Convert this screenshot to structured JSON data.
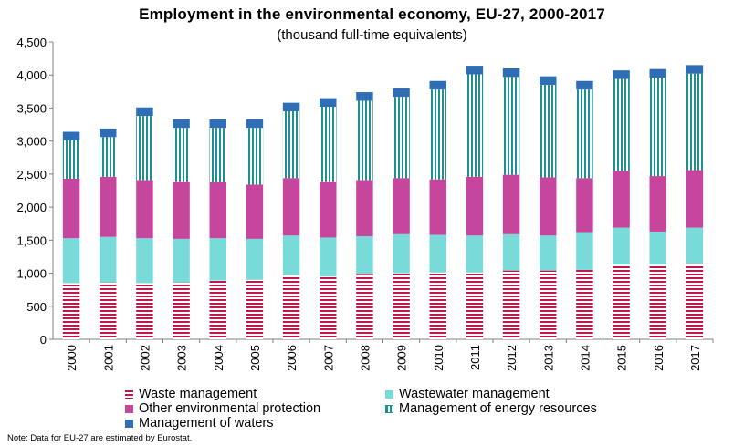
{
  "chart_data": {
    "type": "bar",
    "stacked": true,
    "title": "Employment in the environmental economy, EU-27, 2000-2017",
    "subtitle": "(thousand full-time equivalents)",
    "xlabel": "",
    "ylabel": "",
    "ylim": [
      0,
      4500
    ],
    "yticks": [
      "0",
      "500",
      "1,000",
      "1,500",
      "2,000",
      "2,500",
      "3,000",
      "3,500",
      "4,000",
      "4,500"
    ],
    "grid": false,
    "legend_position": "bottom",
    "categories": [
      "2000",
      "2001",
      "2002",
      "2003",
      "2004",
      "2005",
      "2006",
      "2007",
      "2008",
      "2009",
      "2010",
      "2011",
      "2012",
      "2013",
      "2014",
      "2015",
      "2016",
      "2017"
    ],
    "series": [
      {
        "name": "Waste management",
        "color": "#c0174a",
        "pattern": "horizontal-stripes",
        "values": [
          850,
          860,
          850,
          860,
          890,
          900,
          970,
          950,
          990,
          1000,
          1010,
          1010,
          1040,
          1040,
          1050,
          1130,
          1130,
          1140
        ]
      },
      {
        "name": "Wastewater management",
        "color": "#79dada",
        "pattern": "solid",
        "values": [
          680,
          690,
          680,
          660,
          640,
          620,
          600,
          590,
          570,
          590,
          570,
          560,
          550,
          530,
          570,
          560,
          500,
          550
        ]
      },
      {
        "name": "Other environmental protection",
        "color": "#c7469d",
        "pattern": "solid",
        "values": [
          900,
          910,
          880,
          870,
          850,
          820,
          870,
          850,
          850,
          850,
          840,
          890,
          900,
          880,
          820,
          860,
          840,
          870
        ]
      },
      {
        "name": "Management of energy resources",
        "color": "#1d8f8f",
        "pattern": "vertical-stripes",
        "values": [
          580,
          600,
          970,
          810,
          820,
          860,
          1010,
          1130,
          1200,
          1230,
          1360,
          1550,
          1480,
          1400,
          1340,
          1390,
          1490,
          1460
        ]
      },
      {
        "name": "Management of waters",
        "color": "#2f6eb5",
        "pattern": "solid",
        "values": [
          130,
          130,
          130,
          130,
          130,
          130,
          130,
          130,
          130,
          130,
          130,
          130,
          130,
          130,
          130,
          130,
          130,
          130
        ]
      }
    ],
    "legend": [
      "Waste management",
      "Wastewater management",
      "Other environmental protection",
      "Management of energy resources",
      "Management of waters"
    ],
    "note": "Note: Data for EU-27 are estimated by Eurostat."
  }
}
